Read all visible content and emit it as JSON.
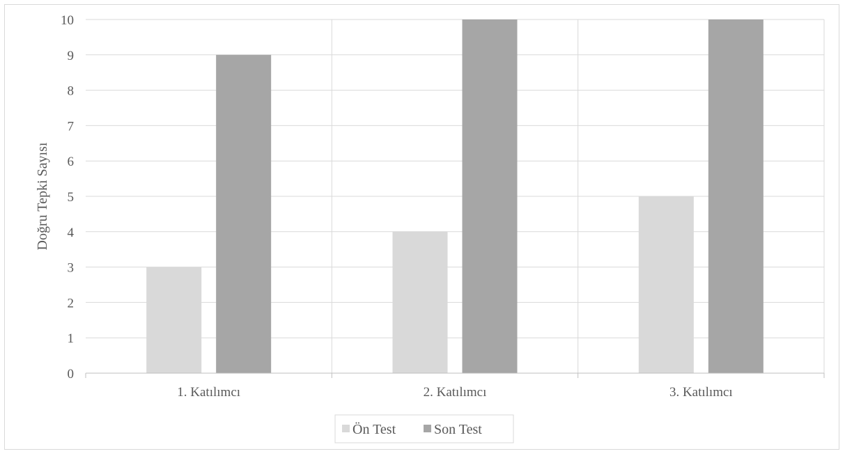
{
  "chart_data": {
    "type": "bar",
    "categories": [
      "1. Katılımcı",
      "2. Katılımcı",
      "3. Katılımcı"
    ],
    "series": [
      {
        "name": "Ön Test",
        "values": [
          3,
          4,
          5
        ],
        "color": "#d9d9d9"
      },
      {
        "name": "Son Test",
        "values": [
          9,
          10,
          10
        ],
        "color": "#a6a6a6"
      }
    ],
    "title": "",
    "xlabel": "",
    "ylabel": "Doğru Tepki Sayısı",
    "ylim": [
      0,
      10
    ],
    "yticks": [
      "0",
      "1",
      "2",
      "3",
      "4",
      "5",
      "6",
      "7",
      "8",
      "9",
      "10"
    ],
    "grid": true,
    "legend_position": "bottom"
  }
}
